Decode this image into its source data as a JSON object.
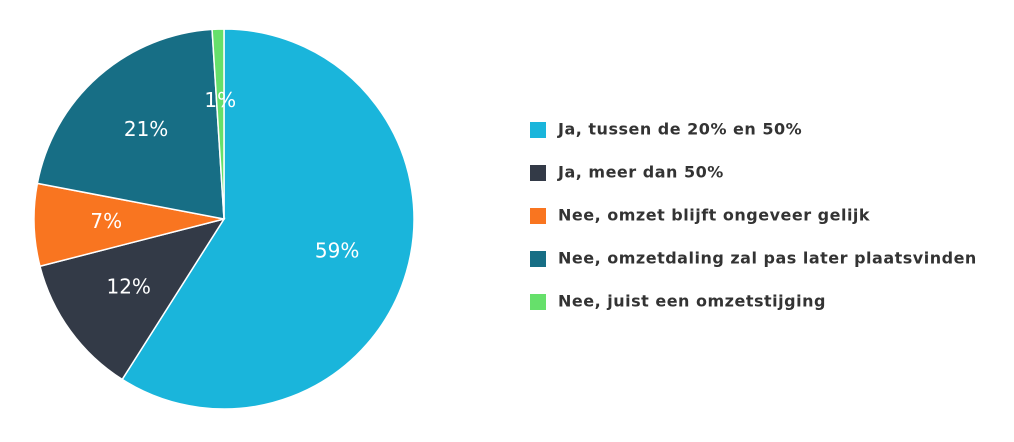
{
  "chart_data": {
    "type": "pie",
    "categories": [
      "Ja, tussen de 20% en 50%",
      "Ja, meer dan 50%",
      "Nee, omzet blijft ongeveer gelijk",
      "Nee, omzetdaling zal pas later plaatsvinden",
      "Nee, juist een omzetstijging"
    ],
    "values": [
      59,
      12,
      7,
      21,
      1
    ],
    "value_labels": [
      "59%",
      "12%",
      "7%",
      "21%",
      "1%"
    ],
    "colors": [
      "#1ab5db",
      "#333a47",
      "#f97520",
      "#176e85",
      "#66e06b"
    ],
    "legend": "right"
  }
}
